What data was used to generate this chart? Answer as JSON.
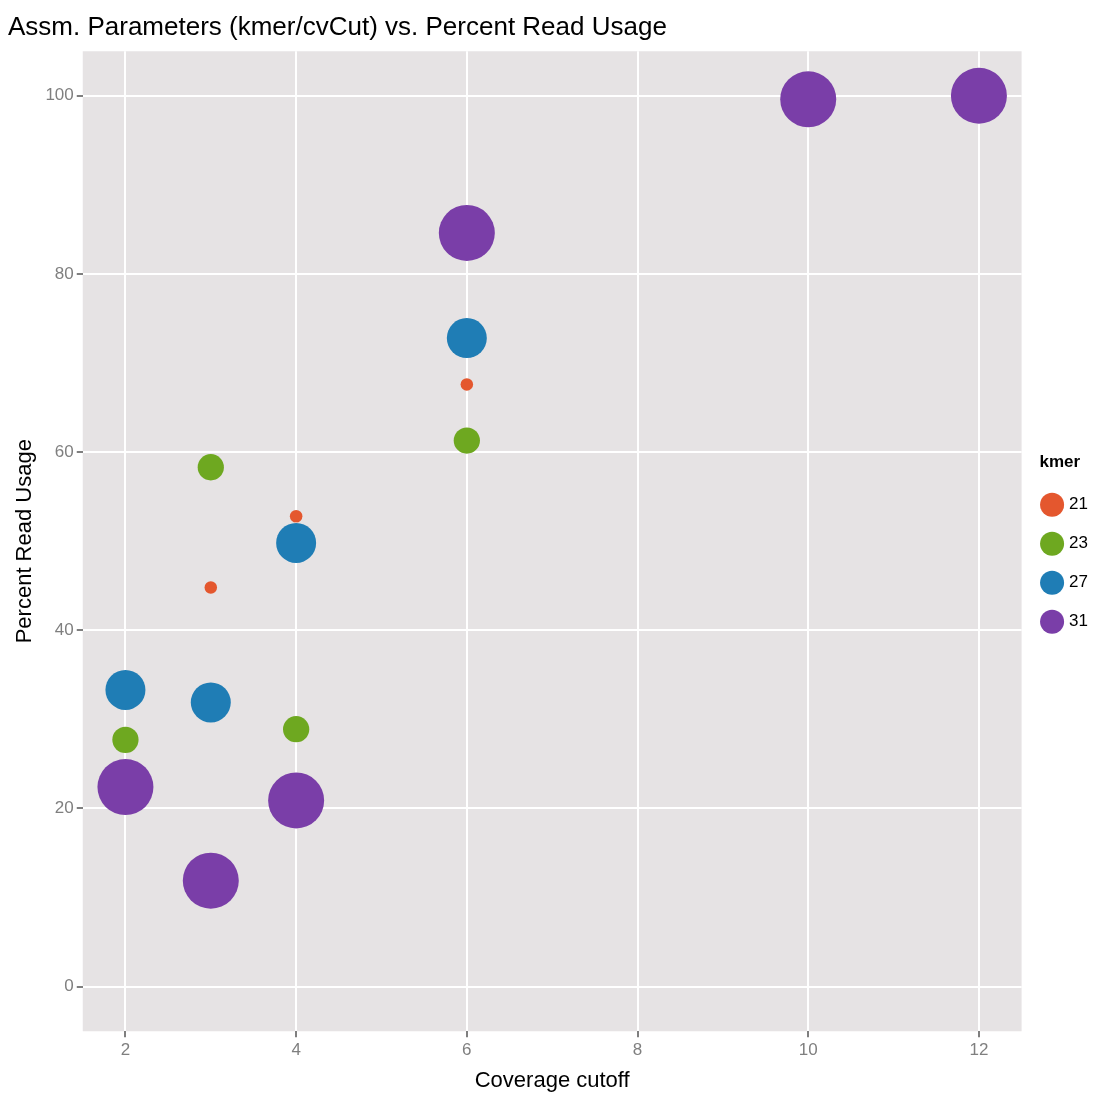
{
  "chart_data": {
    "type": "bubble",
    "title": "Assm. Parameters (kmer/cvCut) vs. Percent Read Usage",
    "xlabel": "Coverage cutoff",
    "ylabel": "Percent Read Usage",
    "legend_title": "kmer",
    "legend": "right",
    "grid": true,
    "xlim": [
      1.5,
      12.5
    ],
    "xticks": [
      2,
      4,
      6,
      8,
      10,
      12
    ],
    "ylim": [
      -5,
      105
    ],
    "yticks": [
      0,
      20,
      40,
      60,
      80,
      100
    ],
    "series": [
      {
        "name": "21",
        "color": "#e4572e",
        "x": [
          3,
          4,
          6
        ],
        "values": [
          44.8,
          52.8,
          67.6
        ],
        "sizes": [
          0.05,
          0.05,
          0.05
        ]
      },
      {
        "name": "23",
        "color": "#6ea820",
        "x": [
          2,
          3,
          4,
          6
        ],
        "values": [
          27.7,
          58.3,
          28.9,
          61.3
        ],
        "sizes": [
          0.22,
          0.22,
          0.22,
          0.22
        ]
      },
      {
        "name": "27",
        "color": "#1f7db5",
        "x": [
          2,
          3,
          4,
          6
        ],
        "values": [
          33.3,
          31.9,
          49.8,
          72.8
        ],
        "sizes": [
          0.51,
          0.51,
          0.51,
          0.51
        ]
      },
      {
        "name": "31",
        "color": "#7a3ea8",
        "x": [
          2,
          3,
          4,
          6,
          10,
          12
        ],
        "values": [
          22.4,
          11.9,
          20.9,
          84.6,
          99.6,
          100
        ],
        "sizes": [
          1,
          1,
          1,
          1,
          1,
          1
        ]
      }
    ]
  }
}
